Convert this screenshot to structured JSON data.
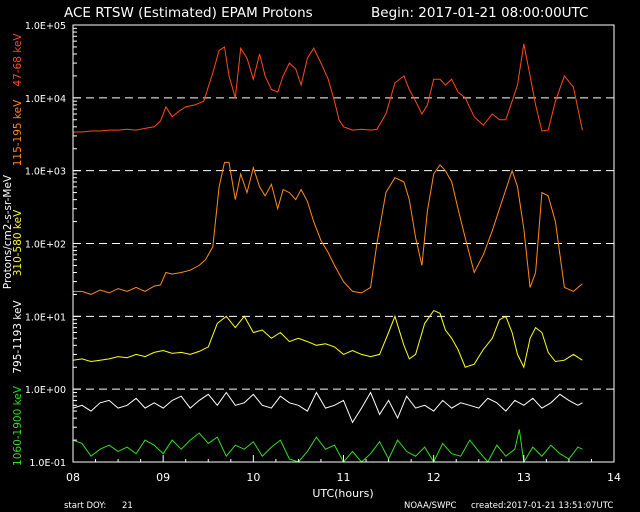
{
  "chart_data": {
    "type": "line",
    "title": "ACE RTSW (Estimated) EPAM Protons",
    "begin_label": "Begin: 2017-01-21 08:00:00UTC",
    "xlabel": "UTC(hours)",
    "ylabel": "Protons/cm2-s-sr-MeV",
    "y_scale": "log",
    "xlim": [
      8.0,
      14.0
    ],
    "ylim": [
      0.1,
      100000
    ],
    "x_ticks": [
      "08",
      "09",
      "10",
      "11",
      "12",
      "13",
      "14"
    ],
    "y_ticks": [
      "1.0E+05",
      "1.0E+04",
      "1.0E+03",
      "1.0E+02",
      "1.0E+01",
      "1.0E+00",
      "1.0E-01"
    ],
    "dashed_gridlines_at": [
      10000,
      1000,
      100,
      10,
      1
    ],
    "series": [
      {
        "name": "47-68 keV",
        "color": "#ff4a1a",
        "x": [
          8.0,
          8.1,
          8.2,
          8.3,
          8.4,
          8.5,
          8.6,
          8.7,
          8.8,
          8.9,
          8.97,
          9.03,
          9.1,
          9.17,
          9.25,
          9.35,
          9.45,
          9.55,
          9.62,
          9.68,
          9.73,
          9.8,
          9.86,
          9.93,
          10.0,
          10.07,
          10.13,
          10.2,
          10.27,
          10.33,
          10.4,
          10.47,
          10.53,
          10.6,
          10.67,
          10.75,
          10.83,
          10.9,
          10.95,
          11.0,
          11.1,
          11.2,
          11.3,
          11.37,
          11.47,
          11.57,
          11.67,
          11.73,
          11.8,
          11.87,
          11.93,
          12.0,
          12.07,
          12.13,
          12.2,
          12.27,
          12.35,
          12.45,
          12.55,
          12.65,
          12.73,
          12.8,
          12.87,
          12.93,
          13.0,
          13.07,
          13.13,
          13.2,
          13.27,
          13.35,
          13.45,
          13.55,
          13.65
        ],
        "y": [
          3400,
          3400,
          3500,
          3500,
          3600,
          3600,
          3700,
          3600,
          3800,
          4000,
          4800,
          7500,
          5500,
          6500,
          7500,
          8000,
          9000,
          22000,
          45000,
          50000,
          20000,
          10000,
          48000,
          35000,
          18000,
          40000,
          20000,
          13000,
          12000,
          20000,
          30000,
          25000,
          15000,
          35000,
          48000,
          30000,
          18000,
          9000,
          5000,
          4000,
          3600,
          3700,
          3600,
          3700,
          6000,
          16000,
          20000,
          13000,
          9000,
          6000,
          8000,
          18000,
          18000,
          15000,
          18000,
          12000,
          10000,
          5500,
          4200,
          6000,
          5000,
          5000,
          9000,
          15000,
          55000,
          20000,
          8000,
          3500,
          3600,
          9000,
          20000,
          14000,
          3600
        ]
      },
      {
        "name": "115-195 keV",
        "color": "#ff8c1a",
        "x": [
          8.0,
          8.1,
          8.2,
          8.3,
          8.4,
          8.5,
          8.6,
          8.7,
          8.8,
          8.9,
          8.97,
          9.03,
          9.1,
          9.2,
          9.3,
          9.4,
          9.47,
          9.55,
          9.62,
          9.68,
          9.73,
          9.8,
          9.86,
          9.93,
          10.0,
          10.07,
          10.13,
          10.2,
          10.27,
          10.33,
          10.4,
          10.47,
          10.53,
          10.6,
          10.67,
          10.75,
          10.83,
          10.9,
          11.0,
          11.1,
          11.2,
          11.3,
          11.37,
          11.47,
          11.57,
          11.67,
          11.73,
          11.8,
          11.87,
          11.93,
          12.0,
          12.07,
          12.13,
          12.2,
          12.27,
          12.35,
          12.45,
          12.55,
          12.65,
          12.73,
          12.8,
          12.87,
          12.93,
          13.0,
          13.07,
          13.13,
          13.2,
          13.27,
          13.35,
          13.45,
          13.55,
          13.65
        ],
        "y": [
          22,
          22,
          20,
          23,
          21,
          24,
          22,
          25,
          22,
          26,
          27,
          40,
          38,
          40,
          43,
          50,
          60,
          90,
          600,
          1300,
          1300,
          400,
          900,
          500,
          1100,
          600,
          450,
          650,
          300,
          550,
          500,
          400,
          550,
          380,
          200,
          110,
          75,
          50,
          30,
          22,
          21,
          25,
          100,
          500,
          800,
          700,
          400,
          120,
          50,
          280,
          900,
          1200,
          1000,
          700,
          300,
          120,
          40,
          70,
          150,
          300,
          550,
          1000,
          600,
          160,
          25,
          40,
          500,
          450,
          200,
          25,
          22,
          28
        ]
      },
      {
        "name": "310-580 keV",
        "color": "#ffff1a",
        "x": [
          8.0,
          8.1,
          8.2,
          8.3,
          8.4,
          8.5,
          8.6,
          8.7,
          8.8,
          8.9,
          9.0,
          9.1,
          9.2,
          9.3,
          9.4,
          9.5,
          9.6,
          9.7,
          9.8,
          9.9,
          10.0,
          10.1,
          10.2,
          10.3,
          10.4,
          10.5,
          10.6,
          10.7,
          10.8,
          10.9,
          11.0,
          11.1,
          11.2,
          11.3,
          11.4,
          11.5,
          11.57,
          11.67,
          11.73,
          11.8,
          11.9,
          12.0,
          12.07,
          12.13,
          12.2,
          12.27,
          12.35,
          12.45,
          12.55,
          12.65,
          12.73,
          12.8,
          12.87,
          12.93,
          13.0,
          13.07,
          13.13,
          13.2,
          13.27,
          13.35,
          13.45,
          13.55,
          13.65
        ],
        "y": [
          2.5,
          2.6,
          2.4,
          2.5,
          2.6,
          2.8,
          2.7,
          3.0,
          2.8,
          3.2,
          3.4,
          3.1,
          3.2,
          3.0,
          3.3,
          3.8,
          8.0,
          10,
          7.0,
          10,
          6.0,
          6.5,
          5.0,
          6.0,
          4.5,
          5.0,
          4.5,
          4.0,
          4.2,
          3.8,
          3.0,
          3.4,
          3.0,
          2.8,
          3.0,
          6.0,
          10,
          4.0,
          2.6,
          3.0,
          8.0,
          12,
          11,
          6.5,
          5.0,
          3.5,
          2.0,
          2.2,
          3.5,
          5.0,
          9.0,
          10,
          6.0,
          3.0,
          2.0,
          5.0,
          7.0,
          6.0,
          3.2,
          2.4,
          2.5,
          3.0,
          2.5
        ]
      },
      {
        "name": "795-1193 keV",
        "color": "#ffffff",
        "x": [
          8.0,
          8.1,
          8.2,
          8.3,
          8.4,
          8.5,
          8.6,
          8.7,
          8.8,
          8.9,
          9.0,
          9.1,
          9.2,
          9.3,
          9.4,
          9.5,
          9.6,
          9.7,
          9.8,
          9.9,
          10.0,
          10.1,
          10.2,
          10.3,
          10.4,
          10.5,
          10.6,
          10.7,
          10.8,
          10.9,
          11.0,
          11.1,
          11.2,
          11.3,
          11.4,
          11.5,
          11.6,
          11.7,
          11.8,
          11.9,
          12.0,
          12.1,
          12.2,
          12.3,
          12.4,
          12.5,
          12.6,
          12.7,
          12.8,
          12.9,
          13.0,
          13.1,
          13.2,
          13.3,
          13.4,
          13.5,
          13.6,
          13.65
        ],
        "y": [
          0.55,
          0.6,
          0.5,
          0.65,
          0.7,
          0.55,
          0.6,
          0.75,
          0.55,
          0.65,
          0.55,
          0.7,
          0.8,
          0.55,
          0.7,
          0.85,
          0.6,
          0.9,
          0.6,
          0.65,
          0.85,
          0.6,
          0.55,
          0.8,
          0.65,
          0.6,
          0.5,
          0.9,
          0.55,
          0.6,
          0.7,
          0.35,
          0.55,
          0.9,
          0.45,
          0.7,
          0.4,
          0.8,
          0.55,
          0.6,
          0.5,
          0.7,
          0.55,
          0.65,
          0.6,
          0.55,
          0.75,
          0.65,
          0.5,
          0.7,
          0.6,
          0.75,
          0.55,
          0.65,
          0.85,
          0.7,
          0.6,
          0.65
        ]
      },
      {
        "name": "1060-1900 keV",
        "color": "#33dd22",
        "x": [
          8.0,
          8.1,
          8.2,
          8.3,
          8.4,
          8.5,
          8.6,
          8.7,
          8.8,
          8.9,
          9.0,
          9.1,
          9.2,
          9.3,
          9.4,
          9.5,
          9.6,
          9.7,
          9.8,
          9.9,
          10.0,
          10.1,
          10.2,
          10.3,
          10.4,
          10.5,
          10.6,
          10.7,
          10.8,
          10.9,
          11.0,
          11.1,
          11.2,
          11.3,
          11.4,
          11.5,
          11.6,
          11.7,
          11.8,
          11.9,
          12.0,
          12.1,
          12.2,
          12.3,
          12.4,
          12.5,
          12.6,
          12.7,
          12.8,
          12.9,
          12.95,
          13.0,
          13.1,
          13.2,
          13.3,
          13.4,
          13.5,
          13.6,
          13.65
        ],
        "y": [
          0.2,
          0.18,
          0.12,
          0.15,
          0.17,
          0.14,
          0.16,
          0.13,
          0.2,
          0.17,
          0.13,
          0.2,
          0.15,
          0.2,
          0.25,
          0.18,
          0.22,
          0.12,
          0.17,
          0.15,
          0.19,
          0.12,
          0.16,
          0.2,
          0.11,
          0.1,
          0.14,
          0.22,
          0.15,
          0.17,
          0.1,
          0.14,
          0.1,
          0.13,
          0.19,
          0.11,
          0.2,
          0.14,
          0.12,
          0.16,
          0.1,
          0.18,
          0.13,
          0.12,
          0.2,
          0.14,
          0.1,
          0.17,
          0.12,
          0.15,
          0.28,
          0.1,
          0.16,
          0.12,
          0.17,
          0.13,
          0.11,
          0.16,
          0.15
        ]
      }
    ],
    "footer": {
      "start_doy_label": "start DOY:",
      "start_doy_value": "21",
      "agency": "NOAA/SWPC",
      "created": "created:2017-01-21 13:51:07UTC"
    }
  }
}
